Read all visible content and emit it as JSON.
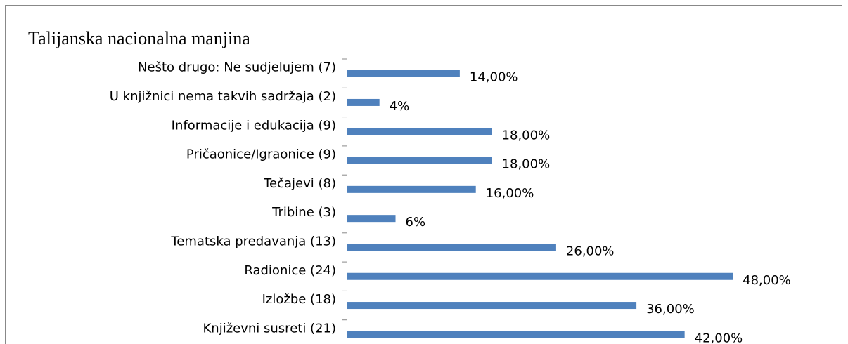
{
  "chart_data": {
    "type": "bar",
    "orientation": "horizontal",
    "title": "Talijanska nacionalna manjina",
    "categories": [
      "Nešto drugo: Ne sudjelujem (7)",
      "U knjižnici nema takvih sadržaja (2)",
      "Informacije i edukacija (9)",
      "Pričaonice/Igraonice (9)",
      "Tečajevi (8)",
      "Tribine (3)",
      "Tematska predavanja (13)",
      "Radionice (24)",
      "Izložbe (18)",
      "Književni susreti (21)"
    ],
    "values": [
      14,
      4,
      18,
      18,
      16,
      6,
      26,
      48,
      36,
      42
    ],
    "value_labels": [
      "14,00%",
      "4%",
      "18,00%",
      "18,00%",
      "16,00%",
      "6%",
      "26,00%",
      "48,00%",
      "36,00%",
      "42,00%"
    ],
    "color": "#4f81bd"
  }
}
